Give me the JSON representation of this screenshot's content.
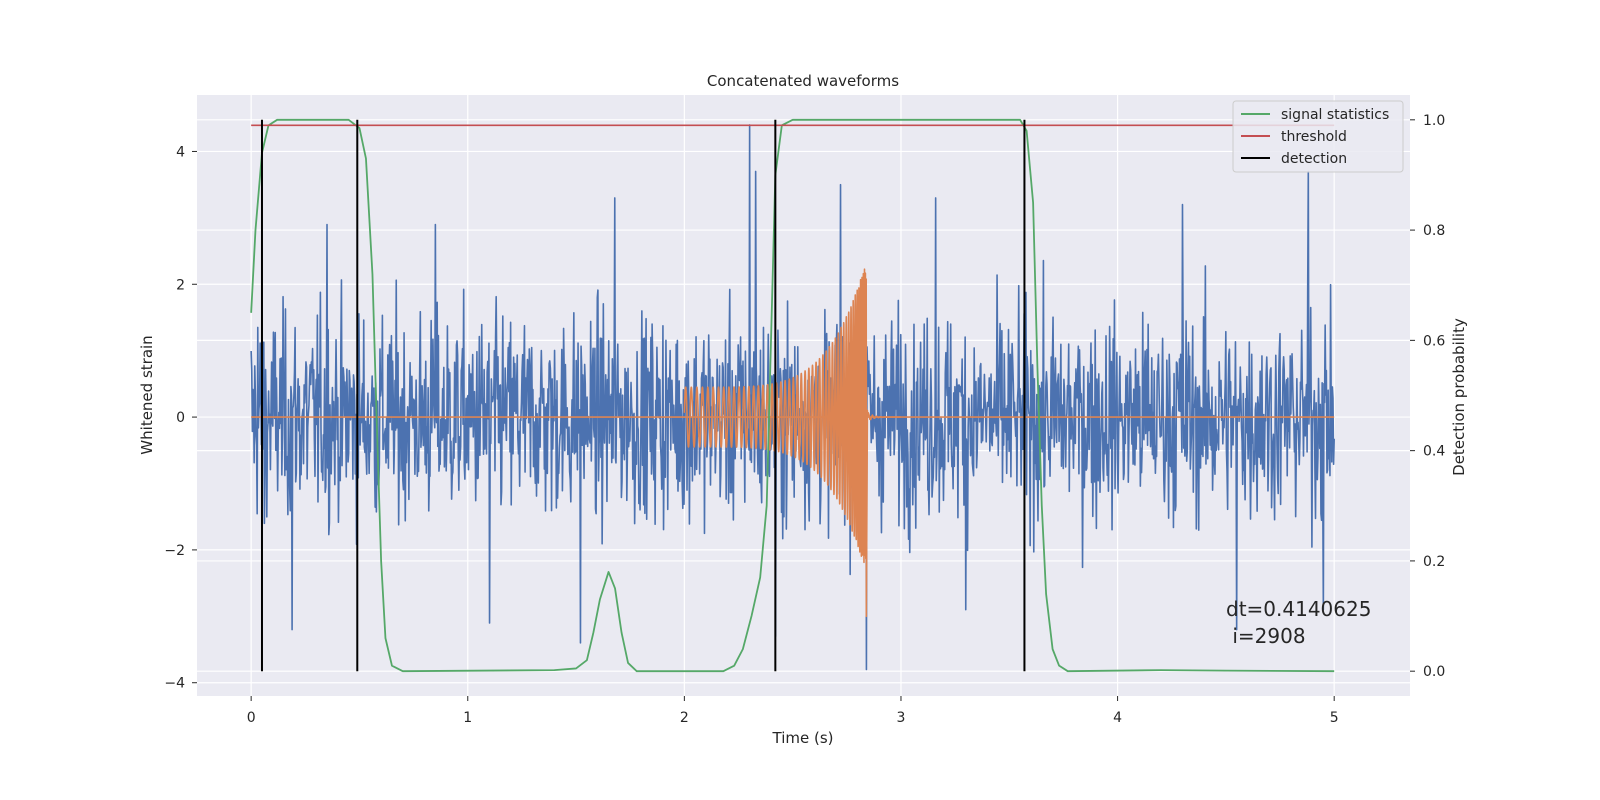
{
  "chart_data": {
    "type": "line",
    "title": "Concatenated waveforms",
    "xlabel": "Time (s)",
    "ylabel": "Whitened strain",
    "ylabel_right": "Detection probability",
    "xlim": [
      -0.25,
      5.35
    ],
    "ylim": [
      -4.2,
      4.85
    ],
    "ylim_right": [
      -0.045,
      1.045
    ],
    "xticks": [
      0,
      1,
      2,
      3,
      4,
      5
    ],
    "xtick_labels": [
      "0",
      "1",
      "2",
      "3",
      "4",
      "5"
    ],
    "yticks": [
      -4,
      -2,
      0,
      2,
      4
    ],
    "ytick_labels": [
      "−4",
      "−2",
      "0",
      "2",
      "4"
    ],
    "yticks_right": [
      0.0,
      0.2,
      0.4,
      0.6,
      0.8,
      1.0
    ],
    "ytick_labels_right": [
      "0.0",
      "0.2",
      "0.4",
      "0.6",
      "0.8",
      "1.0"
    ],
    "grid": true,
    "legend_position": "top-right",
    "series": [
      {
        "name": "",
        "axis": "left",
        "color": "#4c72b0",
        "kind": "noise",
        "x_range": [
          0,
          5
        ],
        "amplitude_sigma": 0.75,
        "extremes": [
          {
            "x": 0.03,
            "y": 1.35
          },
          {
            "x": 0.06,
            "y": -1.6
          },
          {
            "x": 0.35,
            "y": 2.9
          },
          {
            "x": 0.19,
            "y": -3.2
          },
          {
            "x": 0.85,
            "y": 2.9
          },
          {
            "x": 1.1,
            "y": -3.1
          },
          {
            "x": 1.68,
            "y": 3.3
          },
          {
            "x": 1.52,
            "y": -3.4
          },
          {
            "x": 2.3,
            "y": 4.4
          },
          {
            "x": 2.33,
            "y": 3.7
          },
          {
            "x": 2.42,
            "y": -3.3
          },
          {
            "x": 2.72,
            "y": 3.5
          },
          {
            "x": 2.84,
            "y": -3.8
          },
          {
            "x": 3.16,
            "y": 3.3
          },
          {
            "x": 3.3,
            "y": -2.9
          },
          {
            "x": 4.3,
            "y": 3.2
          },
          {
            "x": 4.55,
            "y": -3.2
          },
          {
            "x": 4.88,
            "y": 3.7
          },
          {
            "x": 4.95,
            "y": -2.9
          }
        ]
      },
      {
        "name": "",
        "axis": "left",
        "color": "#dd8452",
        "kind": "chirp",
        "x_start": 2.0,
        "x_merger": 2.84,
        "x_end": 3.0,
        "amp_start": 0.45,
        "amp_peak": 2.35,
        "amp_trough": -3.0
      },
      {
        "name": "signal statistics",
        "axis": "right",
        "color": "#55a868",
        "kind": "line",
        "points": [
          [
            0.0,
            0.65
          ],
          [
            0.02,
            0.8
          ],
          [
            0.05,
            0.94
          ],
          [
            0.08,
            0.99
          ],
          [
            0.12,
            1.0
          ],
          [
            0.45,
            1.0
          ],
          [
            0.5,
            0.985
          ],
          [
            0.53,
            0.93
          ],
          [
            0.56,
            0.72
          ],
          [
            0.58,
            0.45
          ],
          [
            0.6,
            0.2
          ],
          [
            0.62,
            0.06
          ],
          [
            0.65,
            0.01
          ],
          [
            0.7,
            0.0
          ],
          [
            1.4,
            0.002
          ],
          [
            1.5,
            0.005
          ],
          [
            1.55,
            0.02
          ],
          [
            1.58,
            0.07
          ],
          [
            1.61,
            0.13
          ],
          [
            1.65,
            0.18
          ],
          [
            1.68,
            0.15
          ],
          [
            1.71,
            0.07
          ],
          [
            1.74,
            0.015
          ],
          [
            1.78,
            0.0
          ],
          [
            2.18,
            0.0
          ],
          [
            2.23,
            0.01
          ],
          [
            2.27,
            0.04
          ],
          [
            2.31,
            0.1
          ],
          [
            2.35,
            0.17
          ],
          [
            2.38,
            0.3
          ],
          [
            2.4,
            0.6
          ],
          [
            2.42,
            0.9
          ],
          [
            2.45,
            0.99
          ],
          [
            2.5,
            1.0
          ],
          [
            3.55,
            1.0
          ],
          [
            3.58,
            0.98
          ],
          [
            3.61,
            0.85
          ],
          [
            3.63,
            0.55
          ],
          [
            3.65,
            0.3
          ],
          [
            3.67,
            0.14
          ],
          [
            3.7,
            0.04
          ],
          [
            3.73,
            0.01
          ],
          [
            3.77,
            0.0
          ],
          [
            4.2,
            0.002
          ],
          [
            4.5,
            0.001
          ],
          [
            5.0,
            0.0
          ]
        ]
      },
      {
        "name": "threshold",
        "axis": "right",
        "color": "#c44e52",
        "kind": "hline",
        "y": 0.99,
        "x_range": [
          0,
          5
        ]
      },
      {
        "name": "detection",
        "axis": "right",
        "color": "#000000",
        "kind": "vlines",
        "x": [
          0.05,
          0.49,
          2.42,
          3.57
        ],
        "y_range": [
          0,
          1
        ]
      }
    ],
    "annotations": [
      "dt=0.4140625",
      " i=2908"
    ]
  }
}
